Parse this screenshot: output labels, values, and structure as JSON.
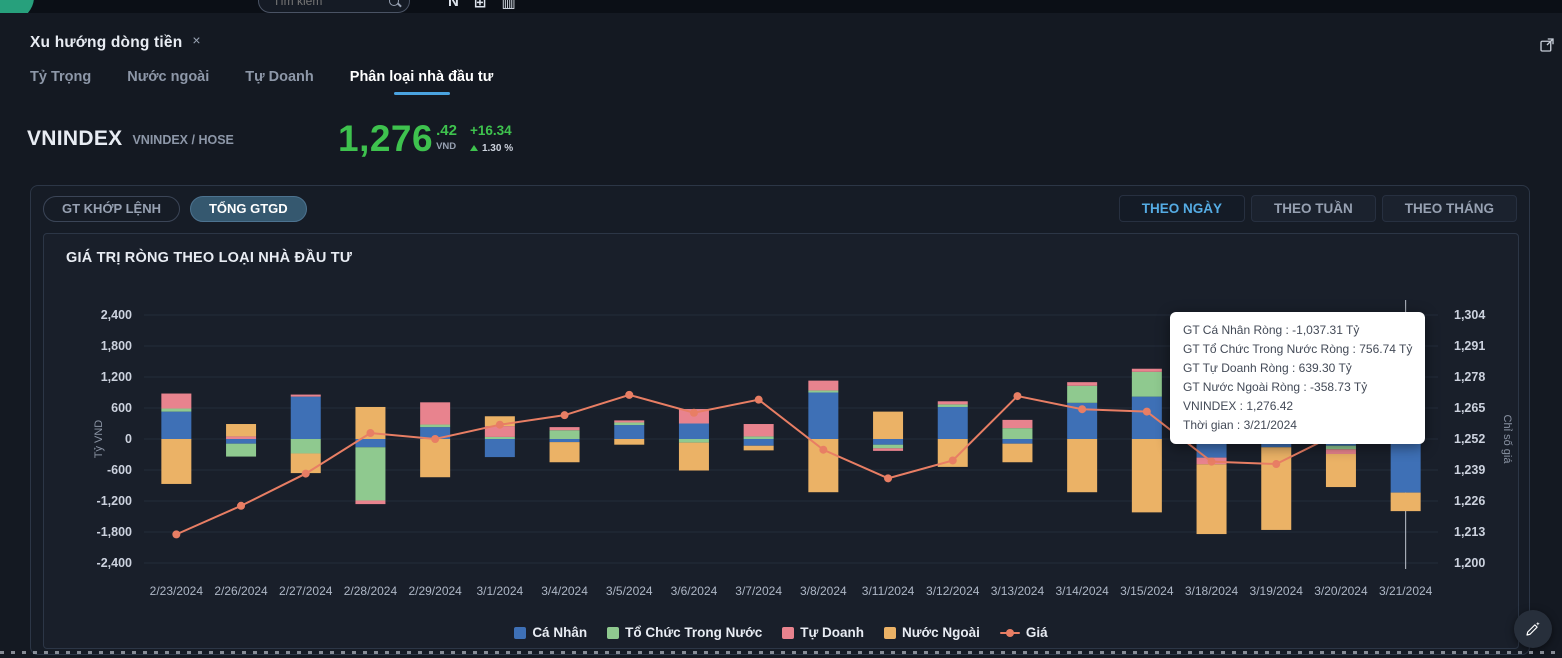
{
  "topbar": {
    "search_placeholder": "Tìm kiếm",
    "icons": [
      "N",
      "⊞",
      "▥"
    ]
  },
  "tab": {
    "title": "Xu hướng dòng tiền",
    "close": "×"
  },
  "subtabs": {
    "items": [
      {
        "label": "Tỷ Trọng",
        "active": false
      },
      {
        "label": "Nước ngoài",
        "active": false
      },
      {
        "label": "Tự Doanh",
        "active": false
      },
      {
        "label": "Phân loại nhà đầu tư",
        "active": true
      }
    ]
  },
  "index": {
    "symbol": "VNINDEX",
    "exchange": "VNINDEX / HOSE",
    "price_int": "1,276",
    "price_dec": ".42",
    "currency": "VND",
    "change": "+16.34",
    "change_pct": "1.30 %"
  },
  "panel": {
    "mode_buttons": [
      {
        "label": "GT KHỚP LỆNH",
        "active": false
      },
      {
        "label": "TỔNG GTGD",
        "active": true
      }
    ],
    "period_buttons": [
      {
        "label": "THEO NGÀY",
        "active": true
      },
      {
        "label": "THEO TUẦN",
        "active": false
      },
      {
        "label": "THEO THÁNG",
        "active": false
      }
    ],
    "chart_title": "GIÁ TRỊ RÒNG THEO LOẠI NHÀ ĐẦU TƯ"
  },
  "tooltip": {
    "lines": [
      "GT Cá Nhân Ròng : -1,037.31 Tỷ",
      "GT Tổ Chức Trong Nước Ròng : 756.74 Tỷ",
      "GT Tự Doanh Ròng : 639.30 Tỷ",
      "GT Nước Ngoài Ròng : -358.73 Tỷ",
      "VNINDEX : 1,276.42",
      "Thời gian : 3/21/2024"
    ]
  },
  "chart_data": {
    "type": "bar",
    "subtype": "stacked-bar-with-line",
    "title": "GIÁ TRỊ RÒNG THEO LOẠI NHÀ ĐẦU TƯ",
    "ylabel_left": "Tỷ VND",
    "ylabel_right": "Chỉ số giá",
    "ylim_left": [
      -2400,
      2400
    ],
    "yticks_left": [
      2400,
      1800,
      1200,
      600,
      0,
      -600,
      -1200,
      -1800,
      -2400
    ],
    "ylim_right": [
      1200,
      1304
    ],
    "yticks_right": [
      1304,
      1291,
      1278,
      1265,
      1252,
      1239,
      1226,
      1213,
      1200
    ],
    "grid": true,
    "legend_position": "bottom",
    "categories": [
      "2/23/2024",
      "2/26/2024",
      "2/27/2024",
      "2/28/2024",
      "2/29/2024",
      "3/1/2024",
      "3/4/2024",
      "3/5/2024",
      "3/6/2024",
      "3/7/2024",
      "3/8/2024",
      "3/11/2024",
      "3/12/2024",
      "3/13/2024",
      "3/14/2024",
      "3/15/2024",
      "3/18/2024",
      "3/19/2024",
      "3/20/2024",
      "3/21/2024"
    ],
    "series": [
      {
        "name": "Cá Nhân",
        "color": "#3e70b6",
        "values": [
          530,
          -90,
          820,
          -160,
          230,
          -350,
          -60,
          270,
          300,
          -130,
          900,
          -110,
          620,
          -90,
          700,
          820,
          -360,
          -160,
          -130,
          -1037.31
        ]
      },
      {
        "name": "Tổ Chức Trong Nước",
        "color": "#8fc98f",
        "values": [
          60,
          -250,
          -280,
          -1030,
          50,
          40,
          170,
          50,
          -70,
          50,
          40,
          -70,
          50,
          210,
          330,
          480,
          240,
          130,
          -70,
          756.74
        ]
      },
      {
        "name": "Tự Doanh",
        "color": "#e8838e",
        "values": [
          290,
          50,
          40,
          -70,
          430,
          210,
          60,
          40,
          280,
          240,
          190,
          -50,
          60,
          160,
          70,
          60,
          -130,
          700,
          -90,
          639.3
        ]
      },
      {
        "name": "Nước Ngoài",
        "color": "#ebb266",
        "values": [
          -870,
          240,
          -380,
          620,
          -740,
          190,
          -390,
          -110,
          -540,
          -90,
          -1030,
          530,
          -540,
          -360,
          -1030,
          -1420,
          -1350,
          -1600,
          -640,
          -358.73
        ]
      }
    ],
    "line_series": {
      "name": "Giá",
      "color": "#e87e64",
      "axis": "right",
      "values": [
        1212,
        1224,
        1237.5,
        1254.5,
        1252,
        1258,
        1262,
        1270.5,
        1263,
        1268.5,
        1247.5,
        1235.5,
        1243,
        1270,
        1264.5,
        1263.5,
        1242.5,
        1241.5,
        1255,
        1276.42
      ]
    },
    "highlight_index": 19
  }
}
